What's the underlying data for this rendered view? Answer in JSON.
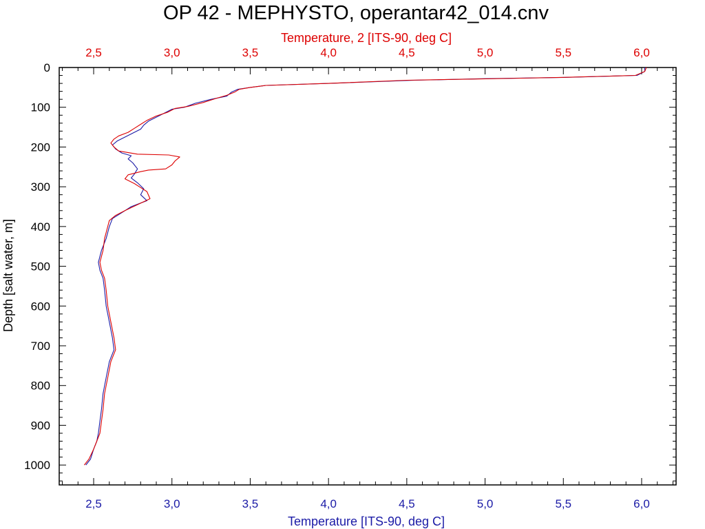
{
  "chart_data": {
    "type": "line",
    "title": "OP 42 - MEPHYSTO, operantar42_014.cnv",
    "x_bottom_label": "Temperature [ITS-90, deg C]",
    "x_top_label": "Temperature, 2 [ITS-90, deg C]",
    "ylabel": "Depth [salt water, m]",
    "xlim": [
      2.28,
      6.22
    ],
    "ylim": [
      0,
      1050
    ],
    "y_inverted": true,
    "x_ticks": [
      "2,5",
      "3,0",
      "3,5",
      "4,0",
      "4,5",
      "5,0",
      "5,5",
      "6,0"
    ],
    "x_tick_values": [
      2.5,
      3.0,
      3.5,
      4.0,
      4.5,
      5.0,
      5.5,
      6.0
    ],
    "y_ticks": [
      "0",
      "100",
      "200",
      "300",
      "400",
      "500",
      "600",
      "700",
      "800",
      "900",
      "1000"
    ],
    "y_tick_values": [
      0,
      100,
      200,
      300,
      400,
      500,
      600,
      700,
      800,
      900,
      1000
    ],
    "grid": false,
    "colors": {
      "series1": "#1a1aa6",
      "series2": "#dd0000",
      "axis": "#000000",
      "bottom_axis_text": "#1a1aa6",
      "top_axis_text": "#dd0000"
    },
    "series": [
      {
        "axis": "bottom",
        "points": [
          [
            6.02,
            0
          ],
          [
            6.02,
            10
          ],
          [
            5.97,
            20
          ],
          [
            5.5,
            25
          ],
          [
            5.0,
            28
          ],
          [
            4.55,
            32
          ],
          [
            4.0,
            40
          ],
          [
            3.6,
            45
          ],
          [
            3.5,
            50
          ],
          [
            3.42,
            55
          ],
          [
            3.38,
            62
          ],
          [
            3.35,
            72
          ],
          [
            3.25,
            80
          ],
          [
            3.15,
            90
          ],
          [
            3.08,
            100
          ],
          [
            3.0,
            105
          ],
          [
            2.95,
            115
          ],
          [
            2.9,
            125
          ],
          [
            2.85,
            135
          ],
          [
            2.82,
            145
          ],
          [
            2.8,
            155
          ],
          [
            2.75,
            165
          ],
          [
            2.7,
            175
          ],
          [
            2.65,
            185
          ],
          [
            2.62,
            195
          ],
          [
            2.64,
            205
          ],
          [
            2.68,
            215
          ],
          [
            2.74,
            222
          ],
          [
            2.72,
            230
          ],
          [
            2.75,
            240
          ],
          [
            2.78,
            255
          ],
          [
            2.76,
            268
          ],
          [
            2.74,
            278
          ],
          [
            2.78,
            290
          ],
          [
            2.82,
            305
          ],
          [
            2.8,
            320
          ],
          [
            2.84,
            335
          ],
          [
            2.74,
            350
          ],
          [
            2.68,
            365
          ],
          [
            2.62,
            380
          ],
          [
            2.6,
            400
          ],
          [
            2.58,
            430
          ],
          [
            2.55,
            460
          ],
          [
            2.53,
            490
          ],
          [
            2.54,
            510
          ],
          [
            2.56,
            530
          ],
          [
            2.57,
            560
          ],
          [
            2.58,
            600
          ],
          [
            2.6,
            640
          ],
          [
            2.62,
            680
          ],
          [
            2.63,
            710
          ],
          [
            2.6,
            740
          ],
          [
            2.58,
            780
          ],
          [
            2.56,
            820
          ],
          [
            2.55,
            860
          ],
          [
            2.54,
            890
          ],
          [
            2.53,
            920
          ],
          [
            2.52,
            940
          ],
          [
            2.5,
            960
          ],
          [
            2.48,
            985
          ],
          [
            2.45,
            1000
          ]
        ]
      },
      {
        "axis": "top",
        "points": [
          [
            6.03,
            0
          ],
          [
            6.02,
            10
          ],
          [
            5.96,
            20
          ],
          [
            5.48,
            25
          ],
          [
            4.95,
            29
          ],
          [
            4.5,
            32
          ],
          [
            4.0,
            40
          ],
          [
            3.6,
            45
          ],
          [
            3.5,
            50
          ],
          [
            3.43,
            55
          ],
          [
            3.4,
            62
          ],
          [
            3.35,
            70
          ],
          [
            3.28,
            78
          ],
          [
            3.2,
            88
          ],
          [
            3.1,
            98
          ],
          [
            3.02,
            103
          ],
          [
            2.97,
            113
          ],
          [
            2.9,
            122
          ],
          [
            2.84,
            133
          ],
          [
            2.8,
            143
          ],
          [
            2.76,
            153
          ],
          [
            2.72,
            163
          ],
          [
            2.66,
            172
          ],
          [
            2.63,
            180
          ],
          [
            2.61,
            190
          ],
          [
            2.63,
            200
          ],
          [
            2.66,
            210
          ],
          [
            2.78,
            218
          ],
          [
            2.98,
            220
          ],
          [
            3.05,
            225
          ],
          [
            3.02,
            235
          ],
          [
            3.0,
            245
          ],
          [
            2.96,
            255
          ],
          [
            2.85,
            258
          ],
          [
            2.8,
            262
          ],
          [
            2.72,
            270
          ],
          [
            2.7,
            280
          ],
          [
            2.76,
            292
          ],
          [
            2.8,
            302
          ],
          [
            2.84,
            312
          ],
          [
            2.86,
            330
          ],
          [
            2.78,
            345
          ],
          [
            2.7,
            360
          ],
          [
            2.64,
            372
          ],
          [
            2.6,
            385
          ],
          [
            2.59,
            400
          ],
          [
            2.57,
            430
          ],
          [
            2.56,
            460
          ],
          [
            2.54,
            490
          ],
          [
            2.55,
            510
          ],
          [
            2.57,
            530
          ],
          [
            2.58,
            560
          ],
          [
            2.59,
            600
          ],
          [
            2.61,
            640
          ],
          [
            2.63,
            680
          ],
          [
            2.64,
            710
          ],
          [
            2.61,
            740
          ],
          [
            2.59,
            780
          ],
          [
            2.57,
            820
          ],
          [
            2.56,
            860
          ],
          [
            2.55,
            890
          ],
          [
            2.54,
            920
          ],
          [
            2.52,
            940
          ],
          [
            2.5,
            960
          ],
          [
            2.47,
            985
          ],
          [
            2.44,
            1000
          ]
        ]
      }
    ]
  }
}
